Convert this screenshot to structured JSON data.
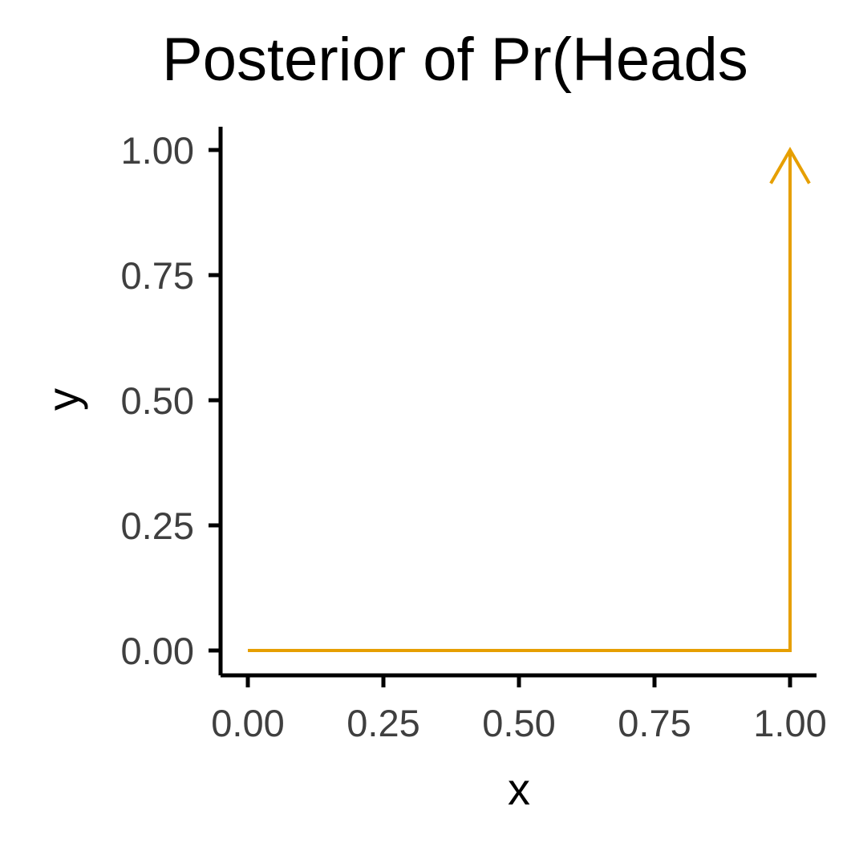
{
  "chart_data": {
    "type": "line",
    "title": "Posterior of Pr(Heads",
    "xlabel": "x",
    "ylabel": "y",
    "xlim": [
      0,
      1
    ],
    "ylim": [
      0,
      1
    ],
    "x_ticks": [
      "0.00",
      "0.25",
      "0.50",
      "0.75",
      "1.00"
    ],
    "y_ticks": [
      "0.00",
      "0.25",
      "0.50",
      "0.75",
      "1.00"
    ],
    "grid": false,
    "legend": "none",
    "series": [
      {
        "color": "#E69F00",
        "x": [
          0,
          1,
          1
        ],
        "y": [
          0,
          0,
          1
        ],
        "end_arrow": true
      }
    ]
  }
}
